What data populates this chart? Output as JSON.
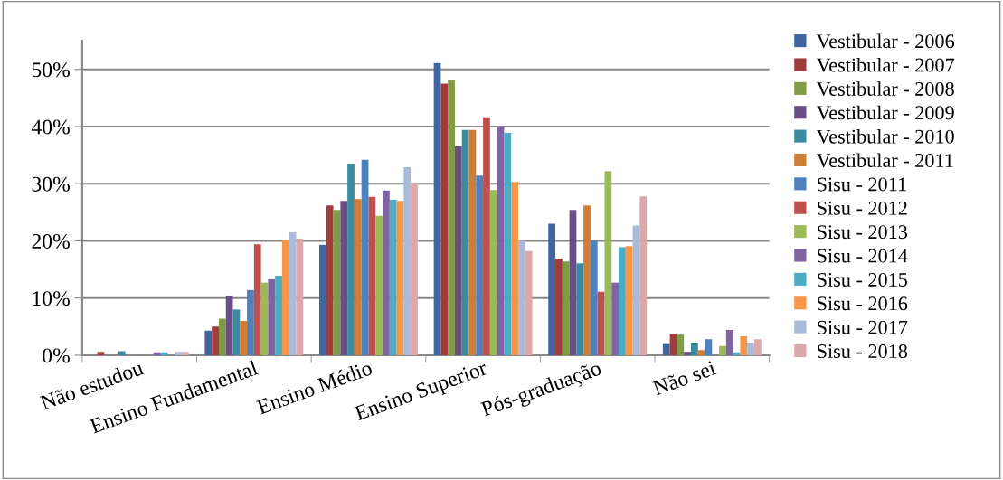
{
  "chart_data": {
    "type": "bar",
    "categories": [
      "Não estudou",
      "Ensino Fundamental",
      "Ensino Médio",
      "Ensino Superior",
      "Pós-graduação",
      "Não sei"
    ],
    "series": [
      {
        "name": "Vestibular - 2006",
        "color": "#4065a0",
        "values": [
          0,
          4.3,
          19.3,
          51.1,
          23.0,
          2.1
        ]
      },
      {
        "name": "Vestibular - 2007",
        "color": "#a03c3a",
        "values": [
          0.6,
          5.0,
          26.2,
          47.5,
          16.9,
          3.7
        ]
      },
      {
        "name": "Vestibular - 2008",
        "color": "#819b46",
        "values": [
          0,
          6.4,
          25.4,
          48.2,
          16.4,
          3.6
        ]
      },
      {
        "name": "Vestibular - 2009",
        "color": "#6a4f87",
        "values": [
          0,
          10.3,
          27.0,
          36.5,
          25.4,
          0.6
        ]
      },
      {
        "name": "Vestibular - 2010",
        "color": "#3b8ba1",
        "values": [
          0.7,
          8.0,
          33.5,
          39.4,
          16.1,
          2.2
        ]
      },
      {
        "name": "Vestibular - 2011",
        "color": "#d07d38",
        "values": [
          0,
          6.0,
          27.3,
          39.4,
          26.2,
          0.9
        ]
      },
      {
        "name": "Sisu - 2011",
        "color": "#4f81bd",
        "values": [
          0,
          11.4,
          34.2,
          31.4,
          20.0,
          2.8
        ]
      },
      {
        "name": "Sisu - 2012",
        "color": "#c0504d",
        "values": [
          0,
          19.4,
          27.7,
          41.6,
          11.1,
          0
        ]
      },
      {
        "name": "Sisu - 2013",
        "color": "#9bbb59",
        "values": [
          0,
          12.7,
          24.4,
          28.9,
          32.2,
          1.6
        ]
      },
      {
        "name": "Sisu - 2014",
        "color": "#8064a2",
        "values": [
          0.5,
          13.3,
          28.8,
          40.0,
          12.7,
          4.4
        ]
      },
      {
        "name": "Sisu - 2015",
        "color": "#4bacc6",
        "values": [
          0.5,
          13.9,
          27.2,
          38.9,
          18.9,
          0.5
        ]
      },
      {
        "name": "Sisu - 2016",
        "color": "#f79646",
        "values": [
          0,
          20.1,
          27.0,
          30.3,
          19.1,
          3.3
        ]
      },
      {
        "name": "Sisu - 2017",
        "color": "#aabbd9",
        "values": [
          0.6,
          21.5,
          32.9,
          20.0,
          22.7,
          2.2
        ]
      },
      {
        "name": "Sisu - 2018",
        "color": "#dba9a9",
        "values": [
          0.6,
          20.4,
          30.1,
          18.2,
          27.8,
          2.8
        ]
      }
    ],
    "ylim": [
      0,
      55
    ],
    "yticks": [
      {
        "value": 0,
        "label": "0%"
      },
      {
        "value": 10,
        "label": "10%"
      },
      {
        "value": 20,
        "label": "20%"
      },
      {
        "value": 30,
        "label": "30%"
      },
      {
        "value": 40,
        "label": "40%"
      },
      {
        "value": 50,
        "label": "50%"
      }
    ],
    "grid": "y",
    "legend": "right"
  }
}
